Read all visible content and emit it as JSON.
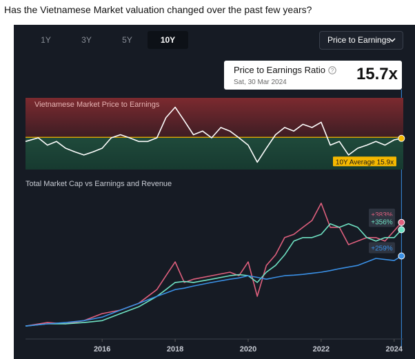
{
  "header": {
    "title": "Has the Vietnamese Market valuation changed over the past few years?"
  },
  "controls": {
    "periods": [
      "1Y",
      "3Y",
      "5Y",
      "10Y"
    ],
    "selected_period_index": 3,
    "metric": "Price to Earnings"
  },
  "tooltip": {
    "title": "Price to Earnings Ratio",
    "date": "Sat, 30 Mar 2024",
    "value": 15.7,
    "label": "15.7x"
  },
  "chart_data": [
    {
      "type": "line",
      "title": "Vietnamese Market Price to Earnings",
      "x": [
        2013.9,
        2014.25,
        2014.5,
        2014.75,
        2015,
        2015.25,
        2015.5,
        2015.75,
        2016,
        2016.25,
        2016.5,
        2016.75,
        2017,
        2017.25,
        2017.5,
        2017.75,
        2018,
        2018.25,
        2018.5,
        2018.75,
        2019,
        2019.25,
        2019.5,
        2019.75,
        2020,
        2020.25,
        2020.5,
        2020.75,
        2021,
        2021.25,
        2021.5,
        2021.75,
        2022,
        2022.25,
        2022.5,
        2022.75,
        2023,
        2023.25,
        2023.5,
        2023.75,
        2024,
        2024.2
      ],
      "series": [
        {
          "color": "#ffffff",
          "values": [
            15.1,
            15.8,
            14.4,
            15.1,
            13.8,
            13.1,
            12.5,
            13.1,
            13.8,
            15.8,
            16.4,
            15.8,
            15.1,
            15.1,
            15.8,
            19.7,
            21.7,
            19.1,
            16.4,
            17.1,
            15.8,
            17.8,
            17.1,
            15.8,
            14.4,
            11.1,
            13.8,
            16.4,
            17.8,
            17.1,
            18.4,
            17.8,
            18.8,
            14.4,
            15.1,
            12.5,
            13.8,
            14.4,
            15.1,
            14.4,
            15.4,
            15.7
          ]
        }
      ],
      "average": {
        "value": 15.9,
        "label": "10Y Average 15.9x",
        "color": "#f5b800"
      },
      "xlim": [
        2013.9,
        2024.25
      ],
      "ylim": [
        9.7,
        23.5
      ]
    },
    {
      "type": "line",
      "title": "Total Market Cap vs Earnings and Revenue",
      "x": [
        2013.9,
        2014.5,
        2015,
        2015.5,
        2016,
        2016.5,
        2017,
        2017.5,
        2017.75,
        2018,
        2018.25,
        2018.5,
        2019,
        2019.5,
        2019.75,
        2020,
        2020.25,
        2020.5,
        2020.75,
        2021,
        2021.25,
        2021.5,
        2021.75,
        2022,
        2022.25,
        2022.5,
        2022.75,
        2023,
        2023.25,
        2023.5,
        2023.75,
        2024,
        2024.2
      ],
      "series": [
        {
          "color": "#e0607e",
          "values": [
            0,
            13,
            8,
            20,
            46,
            59,
            84,
            135,
            186,
            237,
            161,
            173,
            186,
            199,
            186,
            237,
            110,
            224,
            263,
            327,
            339,
            365,
            390,
            454,
            365,
            365,
            301,
            314,
            327,
            327,
            314,
            352,
            383
          ],
          "value_labels": [
            null,
            null,
            null,
            null,
            null,
            null,
            null,
            null,
            null,
            null,
            null,
            null,
            null,
            null,
            null,
            null,
            null,
            null,
            null,
            null,
            null,
            null,
            null,
            null,
            null,
            null,
            null,
            null,
            null,
            null,
            null,
            null,
            "+383%"
          ]
        },
        {
          "color": "#6fe3c4",
          "values": [
            0,
            8,
            8,
            13,
            20,
            46,
            71,
            110,
            135,
            161,
            165,
            161,
            173,
            186,
            190,
            186,
            161,
            199,
            224,
            263,
            314,
            327,
            327,
            339,
            378,
            365,
            378,
            365,
            327,
            314,
            327,
            327,
            356
          ],
          "value_labels": [
            null,
            null,
            null,
            null,
            null,
            null,
            null,
            null,
            null,
            null,
            null,
            null,
            null,
            null,
            null,
            null,
            null,
            null,
            null,
            null,
            null,
            null,
            null,
            null,
            null,
            null,
            null,
            null,
            null,
            null,
            null,
            null,
            "+356%"
          ]
        },
        {
          "color": "#3a90e6",
          "values": [
            0,
            8,
            13,
            20,
            33,
            59,
            84,
            110,
            122,
            135,
            140,
            148,
            161,
            173,
            178,
            186,
            180,
            173,
            180,
            186,
            188,
            191,
            195,
            199,
            205,
            212,
            218,
            224,
            237,
            250,
            246,
            242,
            259
          ],
          "value_labels": [
            null,
            null,
            null,
            null,
            null,
            null,
            null,
            null,
            null,
            null,
            null,
            null,
            null,
            null,
            null,
            null,
            null,
            null,
            null,
            null,
            null,
            null,
            null,
            null,
            null,
            null,
            null,
            null,
            null,
            null,
            null,
            null,
            "+259%"
          ]
        }
      ],
      "xlim": [
        2013.9,
        2024.25
      ],
      "ylim": [
        -48,
        492
      ],
      "xticks": [
        2016,
        2018,
        2020,
        2022,
        2024
      ]
    }
  ]
}
